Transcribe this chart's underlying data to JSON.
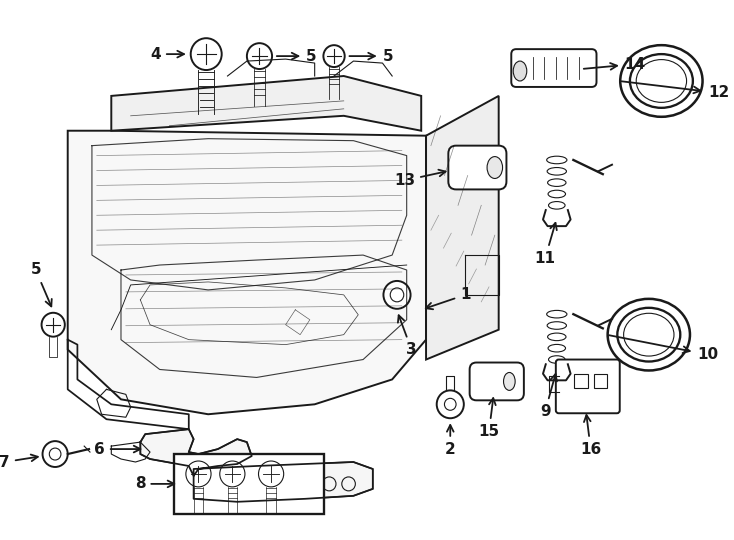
{
  "bg_color": "#ffffff",
  "line_color": "#1a1a1a",
  "fig_width": 7.34,
  "fig_height": 5.4,
  "dpi": 100,
  "fontsize": 11,
  "lw_main": 1.4,
  "lw_detail": 0.8
}
